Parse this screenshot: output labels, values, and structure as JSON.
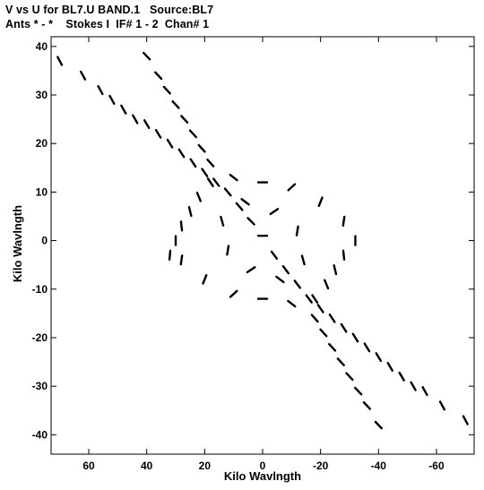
{
  "chart_data": {
    "type": "scatter",
    "title": "V vs U for BL7.U BAND.1   Source:BL7",
    "subtitle": "Ants * - *    Stokes I  IF# 1 - 2  Chan# 1",
    "xlabel": "Kilo Wavlngth",
    "ylabel": "Kilo Wavlngth",
    "xlim": [
      73,
      -73
    ],
    "ylim": [
      -44,
      42
    ],
    "x_ticks": [
      60,
      40,
      20,
      0,
      -20,
      -40,
      -60
    ],
    "x_tick_labels": [
      "60",
      "40",
      "20",
      "0",
      "-20",
      "-40",
      "-60"
    ],
    "y_ticks": [
      40,
      30,
      20,
      10,
      0,
      -10,
      -20,
      -30,
      -40
    ],
    "y_tick_labels": [
      "40",
      "30",
      "20",
      "10",
      "0",
      "-10",
      "-20",
      "-30",
      "-40"
    ],
    "grid": false,
    "legend": "none",
    "marker_color": "#000000",
    "series": [
      {
        "values": [
          {
            "u": 70,
            "v": 37
          },
          {
            "u": 62,
            "v": 34
          },
          {
            "u": 56,
            "v": 31
          },
          {
            "u": 52,
            "v": 29
          },
          {
            "u": 48,
            "v": 27
          },
          {
            "u": 44,
            "v": 25
          },
          {
            "u": 40,
            "v": 24
          },
          {
            "u": 36,
            "v": 22
          },
          {
            "u": 32,
            "v": 20
          },
          {
            "u": 28,
            "v": 18
          },
          {
            "u": 24,
            "v": 16
          },
          {
            "u": 20,
            "v": 14
          },
          {
            "u": 16,
            "v": 12
          },
          {
            "u": 12,
            "v": 10
          },
          {
            "u": 8,
            "v": 7
          },
          {
            "u": 4,
            "v": 4
          },
          {
            "u": 0,
            "v": 1
          },
          {
            "u": -4,
            "v": -3
          },
          {
            "u": -8,
            "v": -6
          },
          {
            "u": -12,
            "v": -9
          },
          {
            "u": -16,
            "v": -12
          },
          {
            "u": -20,
            "v": -14
          },
          {
            "u": -24,
            "v": -16
          },
          {
            "u": -28,
            "v": -18
          },
          {
            "u": -32,
            "v": -20
          },
          {
            "u": -36,
            "v": -22
          },
          {
            "u": -40,
            "v": -24
          },
          {
            "u": -44,
            "v": -26
          },
          {
            "u": -48,
            "v": -28
          },
          {
            "u": -52,
            "v": -30
          },
          {
            "u": -56,
            "v": -31
          },
          {
            "u": -62,
            "v": -34
          },
          {
            "u": -70,
            "v": -37
          },
          {
            "u": 40,
            "v": 38
          },
          {
            "u": 36,
            "v": 34
          },
          {
            "u": 33,
            "v": 31
          },
          {
            "u": 30,
            "v": 28
          },
          {
            "u": 27,
            "v": 25
          },
          {
            "u": 24,
            "v": 22
          },
          {
            "u": 21,
            "v": 19
          },
          {
            "u": 18,
            "v": 16
          },
          {
            "u": -40,
            "v": -38
          },
          {
            "u": -36,
            "v": -34
          },
          {
            "u": -33,
            "v": -31
          },
          {
            "u": -30,
            "v": -28
          },
          {
            "u": -27,
            "v": -25
          },
          {
            "u": -24,
            "v": -22
          },
          {
            "u": -21,
            "v": -19
          },
          {
            "u": -18,
            "v": -16
          },
          {
            "u": 25,
            "v": 6
          },
          {
            "u": 28,
            "v": 3
          },
          {
            "u": 30,
            "v": 0
          },
          {
            "u": 32,
            "v": -3
          },
          {
            "u": 22,
            "v": 9
          },
          {
            "u": 18,
            "v": 12
          },
          {
            "u": 10,
            "v": 13
          },
          {
            "u": 0,
            "v": 12
          },
          {
            "u": -10,
            "v": 11
          },
          {
            "u": -20,
            "v": 8
          },
          {
            "u": -28,
            "v": 4
          },
          {
            "u": -32,
            "v": 0
          },
          {
            "u": -25,
            "v": -6
          },
          {
            "u": -28,
            "v": -3
          },
          {
            "u": -22,
            "v": -9
          },
          {
            "u": -18,
            "v": -12
          },
          {
            "u": -10,
            "v": -13
          },
          {
            "u": 0,
            "v": -12
          },
          {
            "u": 10,
            "v": -11
          },
          {
            "u": 20,
            "v": -8
          },
          {
            "u": 28,
            "v": -4
          },
          {
            "u": 14,
            "v": 4
          },
          {
            "u": 12,
            "v": -2
          },
          {
            "u": -14,
            "v": -4
          },
          {
            "u": -12,
            "v": 2
          },
          {
            "u": 6,
            "v": 8
          },
          {
            "u": -6,
            "v": -8
          },
          {
            "u": 4,
            "v": -6
          },
          {
            "u": -4,
            "v": 6
          }
        ]
      }
    ]
  }
}
